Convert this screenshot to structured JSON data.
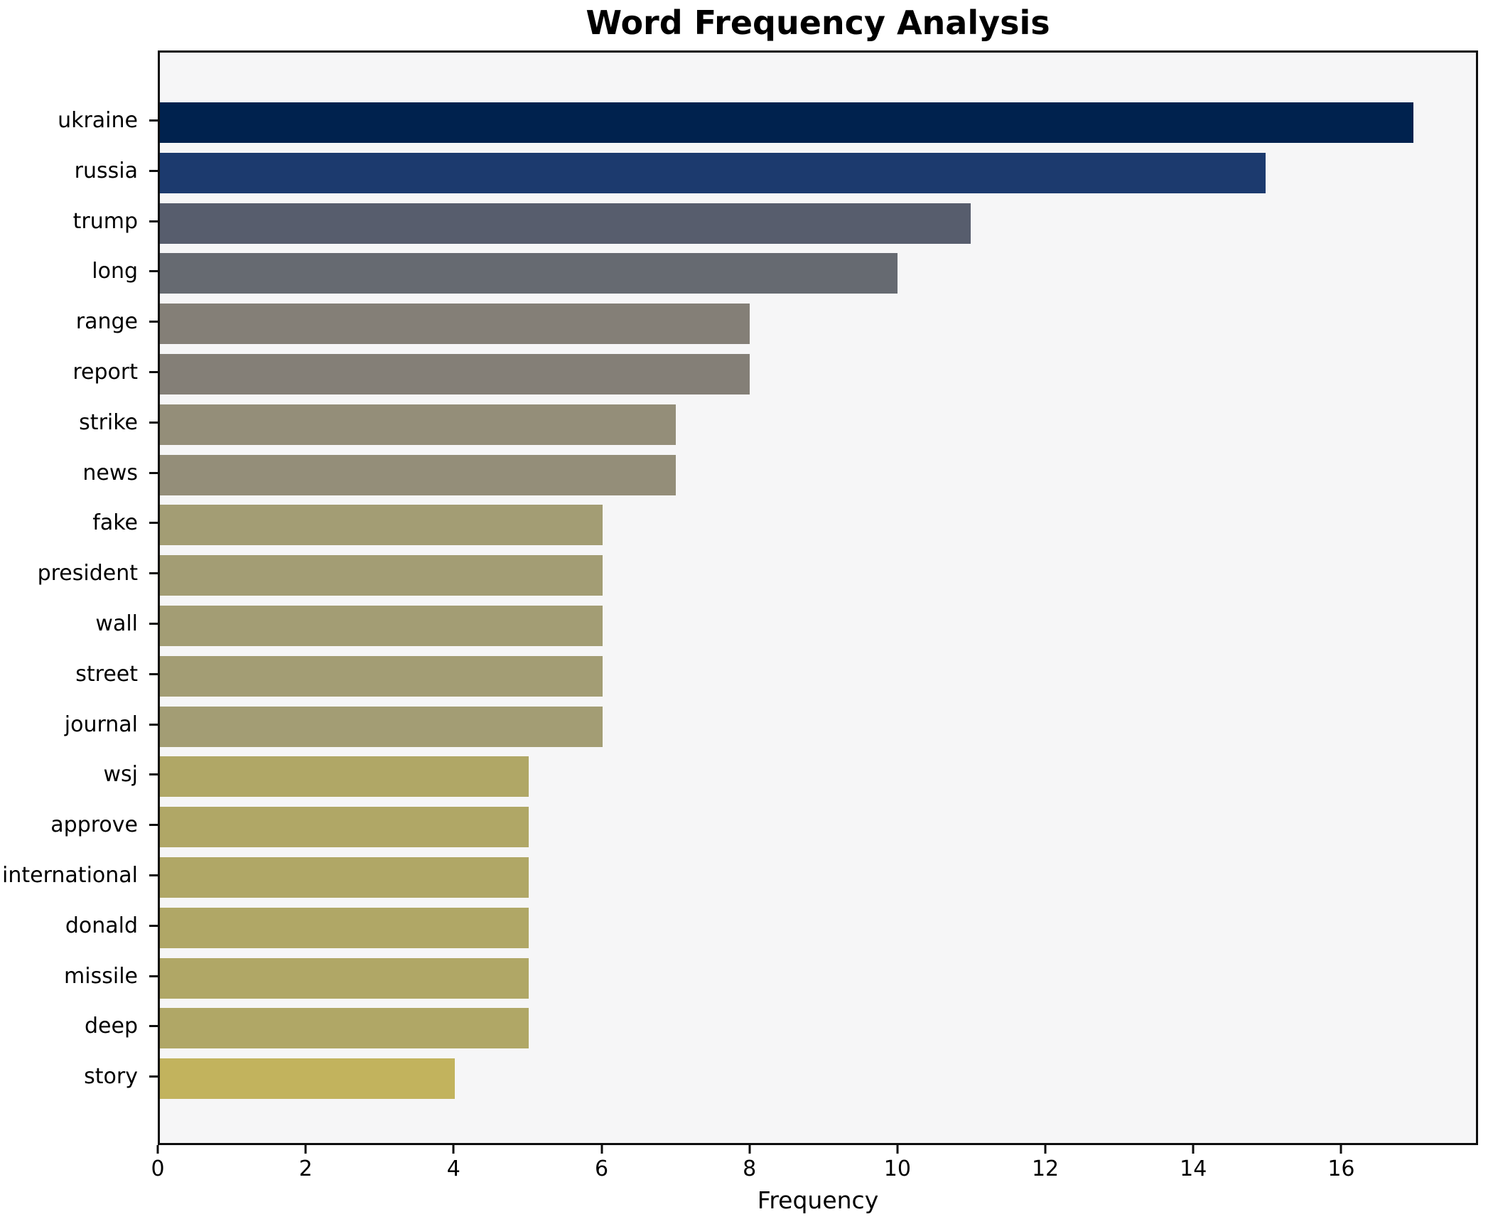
{
  "chart_data": {
    "type": "bar",
    "orientation": "horizontal",
    "title": "Word Frequency Analysis",
    "xlabel": "Frequency",
    "categories": [
      "ukraine",
      "russia",
      "trump",
      "long",
      "range",
      "report",
      "strike",
      "news",
      "fake",
      "president",
      "wall",
      "street",
      "journal",
      "wsj",
      "approve",
      "international",
      "donald",
      "missile",
      "deep",
      "story"
    ],
    "values": [
      17,
      15,
      11,
      10,
      8,
      8,
      7,
      7,
      6,
      6,
      6,
      6,
      6,
      5,
      5,
      5,
      5,
      5,
      5,
      4
    ],
    "bar_colors": [
      "#00224e",
      "#1c3a6e",
      "#575d6d",
      "#666a71",
      "#847f77",
      "#847f77",
      "#948e79",
      "#948e79",
      "#a39d74",
      "#a39d74",
      "#a39d74",
      "#a39d74",
      "#a39d74",
      "#b0a766",
      "#b0a766",
      "#b0a766",
      "#b0a766",
      "#b0a766",
      "#b0a766",
      "#c2b35d"
    ],
    "xlim": [
      0,
      17.85
    ],
    "xticks": [
      0,
      2,
      4,
      6,
      8,
      10,
      12,
      14,
      16
    ],
    "grid": false,
    "plot_bg_color": "#f6f6f7",
    "figure_bg_color": "#ffffff",
    "spine_color": "#0e0e0e"
  }
}
